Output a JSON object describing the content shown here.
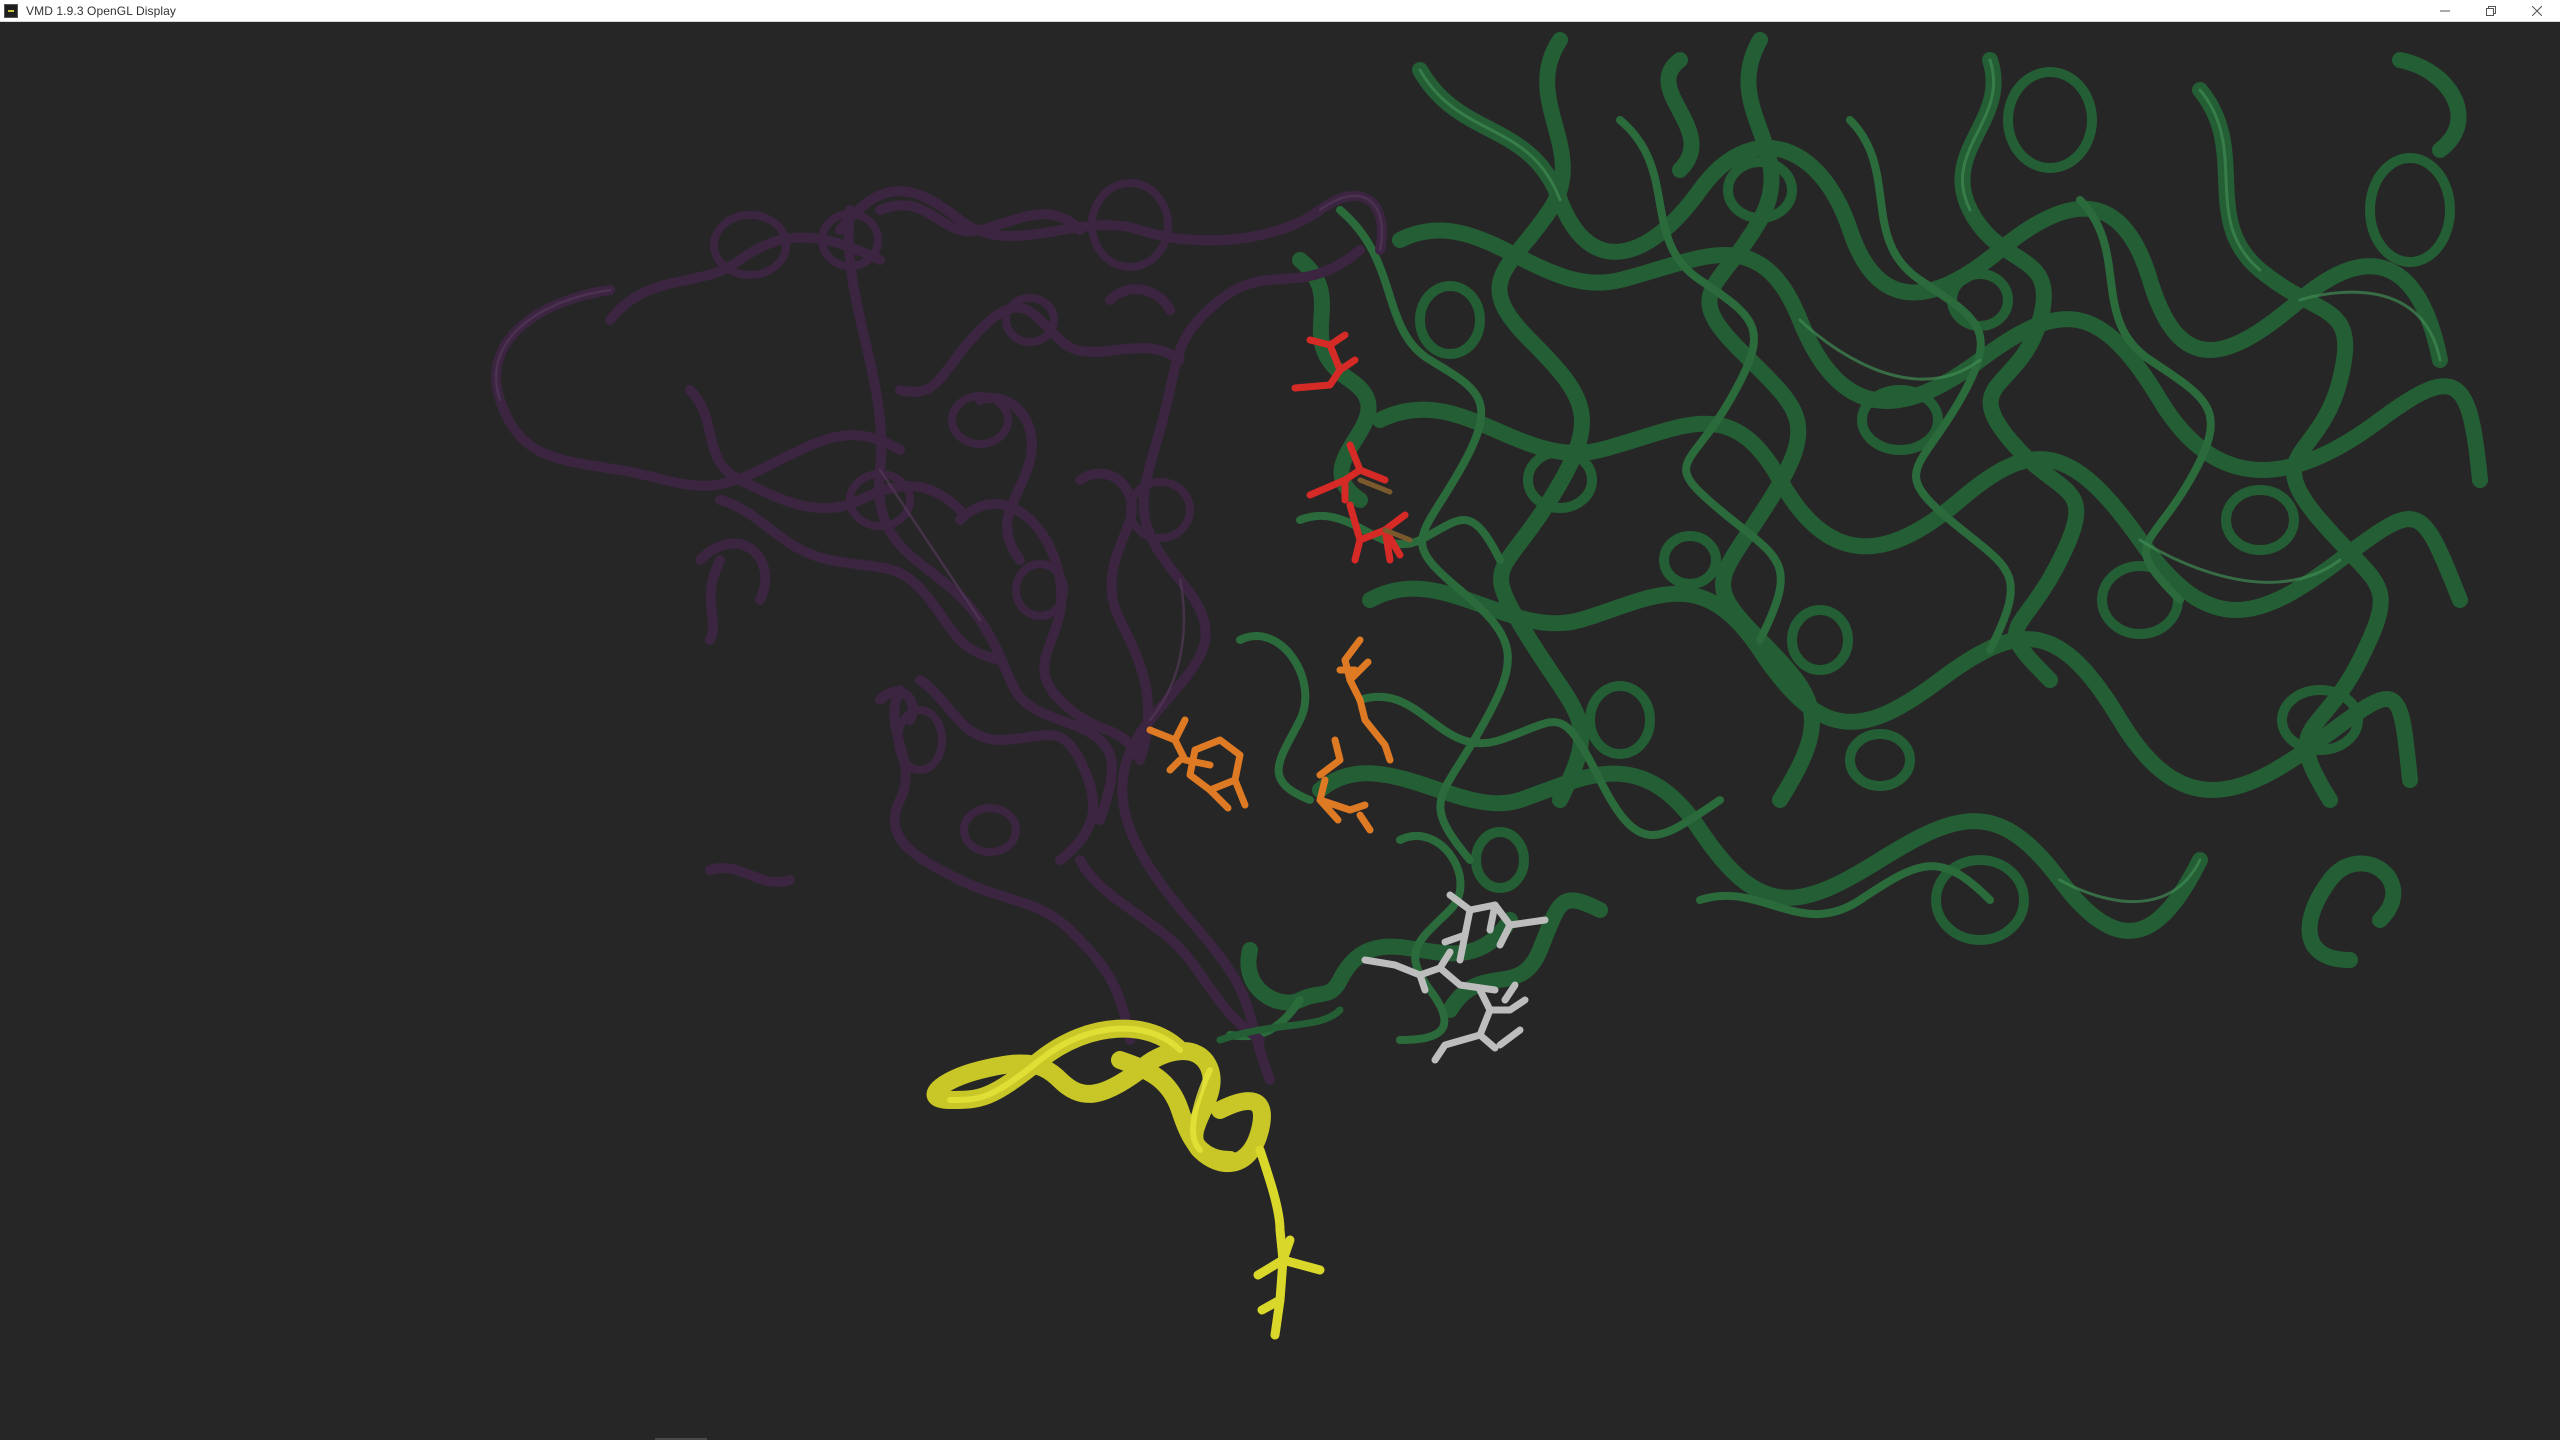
{
  "window": {
    "title": "VMD 1.9.3 OpenGL Display",
    "icon": "vmd-app-icon"
  },
  "controls": {
    "minimize": "minimize-icon",
    "restore": "restore-icon",
    "close": "close-icon"
  },
  "scene": {
    "background": "#262626",
    "colors": {
      "chain_green": "#245e34",
      "chain_green_hi": "#3f8a53",
      "chain_purple": "#3b2540",
      "chain_purple_hi": "#5a3a5f",
      "peptide_yellow": "#d9d82a",
      "residue_red": "#d52a26",
      "residue_orange": "#df7a24",
      "residue_white": "#bdbdbd"
    }
  }
}
